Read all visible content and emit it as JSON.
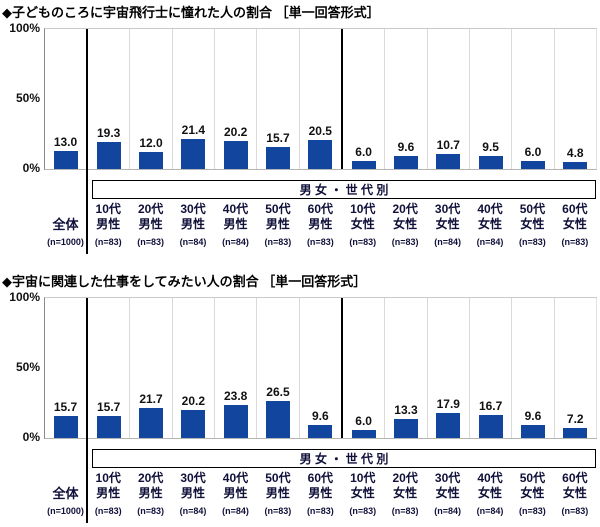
{
  "colors": {
    "bar": "#12459e",
    "grid": "#d9d9d9",
    "separator": "#000000",
    "label_text": "#10103a"
  },
  "charts": [
    {
      "title": "◆子どものころに宇宙飛行士に憧れた人の割合 ［単一回答形式］",
      "y_ticks": [
        "100%",
        "50%",
        "0%"
      ],
      "group_band_label": "男 女 ・ 世 代 別",
      "bars": [
        {
          "label1": "全体",
          "label2": "",
          "n": "(n=1000)",
          "value": "13.0"
        },
        {
          "label1": "10代",
          "label2": "男性",
          "n": "(n=83)",
          "value": "19.3"
        },
        {
          "label1": "20代",
          "label2": "男性",
          "n": "(n=83)",
          "value": "12.0"
        },
        {
          "label1": "30代",
          "label2": "男性",
          "n": "(n=84)",
          "value": "21.4"
        },
        {
          "label1": "40代",
          "label2": "男性",
          "n": "(n=84)",
          "value": "20.2"
        },
        {
          "label1": "50代",
          "label2": "男性",
          "n": "(n=83)",
          "value": "15.7"
        },
        {
          "label1": "60代",
          "label2": "男性",
          "n": "(n=83)",
          "value": "20.5"
        },
        {
          "label1": "10代",
          "label2": "女性",
          "n": "(n=83)",
          "value": "6.0"
        },
        {
          "label1": "20代",
          "label2": "女性",
          "n": "(n=83)",
          "value": "9.6"
        },
        {
          "label1": "30代",
          "label2": "女性",
          "n": "(n=84)",
          "value": "10.7"
        },
        {
          "label1": "40代",
          "label2": "女性",
          "n": "(n=84)",
          "value": "9.5"
        },
        {
          "label1": "50代",
          "label2": "女性",
          "n": "(n=83)",
          "value": "6.0"
        },
        {
          "label1": "60代",
          "label2": "女性",
          "n": "(n=83)",
          "value": "4.8"
        }
      ]
    },
    {
      "title": "◆宇宙に関連した仕事をしてみたい人の割合 ［単一回答形式］",
      "y_ticks": [
        "100%",
        "50%",
        "0%"
      ],
      "group_band_label": "男 女 ・ 世 代 別",
      "bars": [
        {
          "label1": "全体",
          "label2": "",
          "n": "(n=1000)",
          "value": "15.7"
        },
        {
          "label1": "10代",
          "label2": "男性",
          "n": "(n=83)",
          "value": "15.7"
        },
        {
          "label1": "20代",
          "label2": "男性",
          "n": "(n=83)",
          "value": "21.7"
        },
        {
          "label1": "30代",
          "label2": "男性",
          "n": "(n=84)",
          "value": "20.2"
        },
        {
          "label1": "40代",
          "label2": "男性",
          "n": "(n=84)",
          "value": "23.8"
        },
        {
          "label1": "50代",
          "label2": "男性",
          "n": "(n=83)",
          "value": "26.5"
        },
        {
          "label1": "60代",
          "label2": "男性",
          "n": "(n=83)",
          "value": "9.6"
        },
        {
          "label1": "10代",
          "label2": "女性",
          "n": "(n=83)",
          "value": "6.0"
        },
        {
          "label1": "20代",
          "label2": "女性",
          "n": "(n=83)",
          "value": "13.3"
        },
        {
          "label1": "30代",
          "label2": "女性",
          "n": "(n=84)",
          "value": "17.9"
        },
        {
          "label1": "40代",
          "label2": "女性",
          "n": "(n=84)",
          "value": "16.7"
        },
        {
          "label1": "50代",
          "label2": "女性",
          "n": "(n=83)",
          "value": "9.6"
        },
        {
          "label1": "60代",
          "label2": "女性",
          "n": "(n=83)",
          "value": "7.2"
        }
      ]
    }
  ],
  "chart_data": [
    {
      "type": "bar",
      "title": "子どものころに宇宙飛行士に憧れた人の割合（単一回答形式）",
      "categories": [
        "全体",
        "10代男性",
        "20代男性",
        "30代男性",
        "40代男性",
        "50代男性",
        "60代男性",
        "10代女性",
        "20代女性",
        "30代女性",
        "40代女性",
        "50代女性",
        "60代女性"
      ],
      "values": [
        13.0,
        19.3,
        12.0,
        21.4,
        20.2,
        15.7,
        20.5,
        6.0,
        9.6,
        10.7,
        9.5,
        6.0,
        4.8
      ],
      "sample_sizes": [
        1000,
        83,
        83,
        84,
        84,
        83,
        83,
        83,
        83,
        84,
        84,
        83,
        83
      ],
      "group_label": "男女・世代別",
      "xlabel": "",
      "ylabel": "%",
      "ylim": [
        0,
        100
      ],
      "yticks": [
        0,
        50,
        100
      ],
      "grid": "vertical-only",
      "legend": "none"
    },
    {
      "type": "bar",
      "title": "宇宙に関連した仕事をしてみたい人の割合（単一回答形式）",
      "categories": [
        "全体",
        "10代男性",
        "20代男性",
        "30代男性",
        "40代男性",
        "50代男性",
        "60代男性",
        "10代女性",
        "20代女性",
        "30代女性",
        "40代女性",
        "50代女性",
        "60代女性"
      ],
      "values": [
        15.7,
        15.7,
        21.7,
        20.2,
        23.8,
        26.5,
        9.6,
        6.0,
        13.3,
        17.9,
        16.7,
        9.6,
        7.2
      ],
      "sample_sizes": [
        1000,
        83,
        83,
        84,
        84,
        83,
        83,
        83,
        83,
        84,
        84,
        83,
        83
      ],
      "group_label": "男女・世代別",
      "xlabel": "",
      "ylabel": "%",
      "ylim": [
        0,
        100
      ],
      "yticks": [
        0,
        50,
        100
      ],
      "grid": "vertical-only",
      "legend": "none"
    }
  ]
}
